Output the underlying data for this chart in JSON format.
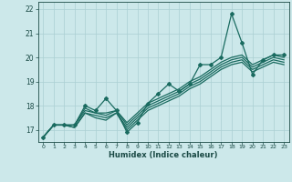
{
  "title": "",
  "xlabel": "Humidex (Indice chaleur)",
  "ylabel": "",
  "bg_color": "#cce8ea",
  "grid_color": "#aacfd2",
  "line_color": "#1a6b60",
  "xlim": [
    -0.5,
    23.5
  ],
  "ylim": [
    16.5,
    22.3
  ],
  "yticks": [
    17,
    18,
    19,
    20,
    21,
    22
  ],
  "xticks": [
    0,
    1,
    2,
    3,
    4,
    5,
    6,
    7,
    8,
    9,
    10,
    11,
    12,
    13,
    14,
    15,
    16,
    17,
    18,
    19,
    20,
    21,
    22,
    23
  ],
  "lines": [
    [
      0,
      16.7,
      1,
      17.2,
      2,
      17.2,
      3,
      17.2,
      4,
      18.0,
      5,
      17.8,
      6,
      18.3,
      7,
      17.8,
      8,
      16.9,
      9,
      17.3,
      10,
      18.1,
      11,
      18.5,
      12,
      18.9,
      13,
      18.6,
      14,
      18.9,
      15,
      19.7,
      16,
      19.7,
      17,
      20.0,
      18,
      21.8,
      19,
      20.6,
      20,
      19.3,
      21,
      19.9,
      22,
      20.1,
      23,
      20.1
    ],
    [
      0,
      16.7,
      1,
      17.2,
      2,
      17.2,
      3,
      17.2,
      4,
      17.9,
      5,
      17.7,
      6,
      17.7,
      7,
      17.8,
      8,
      17.3,
      9,
      17.7,
      10,
      18.1,
      11,
      18.3,
      12,
      18.5,
      13,
      18.7,
      14,
      19.0,
      15,
      19.2,
      16,
      19.5,
      17,
      19.8,
      18,
      20.0,
      19,
      20.1,
      20,
      19.7,
      21,
      19.9,
      22,
      20.1,
      23,
      20.0
    ],
    [
      0,
      16.7,
      1,
      17.2,
      2,
      17.2,
      3,
      17.2,
      4,
      17.8,
      5,
      17.7,
      6,
      17.6,
      7,
      17.8,
      8,
      17.2,
      9,
      17.6,
      10,
      18.0,
      11,
      18.2,
      12,
      18.4,
      13,
      18.6,
      14,
      18.9,
      15,
      19.1,
      16,
      19.4,
      17,
      19.7,
      18,
      19.9,
      19,
      20.0,
      20,
      19.6,
      21,
      19.8,
      22,
      20.0,
      23,
      19.9
    ],
    [
      0,
      16.7,
      1,
      17.2,
      2,
      17.2,
      3,
      17.1,
      4,
      17.7,
      5,
      17.6,
      6,
      17.5,
      7,
      17.7,
      8,
      17.1,
      9,
      17.5,
      10,
      17.9,
      11,
      18.1,
      12,
      18.3,
      13,
      18.5,
      14,
      18.8,
      15,
      19.0,
      16,
      19.3,
      17,
      19.6,
      18,
      19.8,
      19,
      19.9,
      20,
      19.5,
      21,
      19.7,
      22,
      19.9,
      23,
      19.8
    ],
    [
      0,
      16.7,
      1,
      17.2,
      2,
      17.2,
      3,
      17.1,
      4,
      17.7,
      5,
      17.5,
      6,
      17.4,
      7,
      17.7,
      8,
      17.0,
      9,
      17.4,
      10,
      17.8,
      11,
      18.0,
      12,
      18.2,
      13,
      18.4,
      14,
      18.7,
      15,
      18.9,
      16,
      19.2,
      17,
      19.5,
      18,
      19.7,
      19,
      19.8,
      20,
      19.4,
      21,
      19.6,
      22,
      19.8,
      23,
      19.7
    ]
  ]
}
